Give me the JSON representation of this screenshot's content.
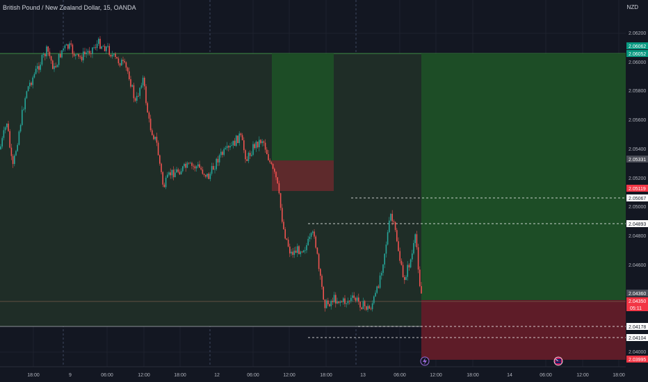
{
  "header": {
    "symbol_title": "British Pound / New Zealand Dollar, 15, OANDA",
    "currency": "NZD"
  },
  "price_axis": {
    "ticks": [
      "2.06200",
      "2.06000",
      "2.05800",
      "2.05600",
      "2.05400",
      "2.05200",
      "2.05000",
      "2.04800",
      "2.04600",
      "2.04000"
    ]
  },
  "time_axis": {
    "ticks": [
      "18:00",
      "9",
      "06:00",
      "12:00",
      "18:00",
      "12",
      "06:00",
      "12:00",
      "18:00",
      "13",
      "06:00",
      "12:00",
      "18:00",
      "14",
      "06:00",
      "12:00",
      "18:00"
    ]
  },
  "price_labels": [
    {
      "text": "2.06062",
      "style": "green"
    },
    {
      "text": "2.06052",
      "style": "green"
    },
    {
      "text": "2.05331",
      "style": "gray"
    },
    {
      "text": "2.05119",
      "style": "red"
    },
    {
      "text": "2.05067",
      "style": "white"
    },
    {
      "text": "2.04893",
      "style": "white"
    },
    {
      "text": "2.04360",
      "style": "gray"
    },
    {
      "text": "2.04350",
      "style": "red"
    },
    {
      "text": "05:11",
      "style": "red"
    },
    {
      "text": "2.04178",
      "style": "white"
    },
    {
      "text": "2.04104",
      "style": "white"
    },
    {
      "text": "2.03995",
      "style": "red"
    }
  ],
  "markers": {
    "lightning_icon": "lightning-icon",
    "flag_icon": "nz-flag-icon"
  },
  "colors": {
    "background": "#131722",
    "up": "#26a69a",
    "down": "#ef5350",
    "profit_zone": "#1d4d26",
    "loss_zone": "#5e1c28",
    "grid": "#1e222d"
  }
}
